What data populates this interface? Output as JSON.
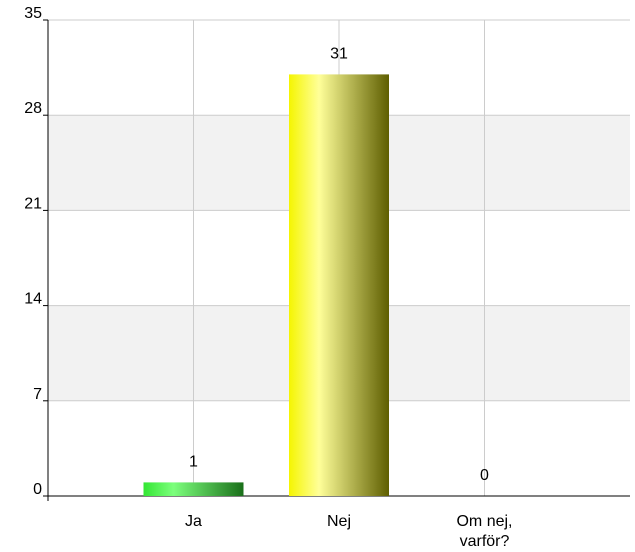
{
  "chart_data": {
    "type": "bar",
    "categories": [
      "Ja",
      "Nej",
      "Om nej, varför?"
    ],
    "category_label_lines": [
      [
        "Ja"
      ],
      [
        "Nej"
      ],
      [
        "Om nej,",
        "varför?"
      ]
    ],
    "values": [
      1,
      31,
      0
    ],
    "data_labels": [
      "1",
      "31",
      "0"
    ],
    "ylim": [
      0,
      35
    ],
    "yticks": [
      0,
      7,
      14,
      21,
      28,
      35
    ],
    "ytick_labels": [
      "0",
      "7",
      "14",
      "21",
      "28",
      "35"
    ],
    "grid": true,
    "banded_background": true,
    "legend": "none",
    "title": "",
    "xlabel": "",
    "ylabel": ""
  },
  "colors": {
    "background": "#ffffff",
    "band": "#f2f2f2",
    "grid": "#cccccc",
    "axis": "#000000",
    "bar_ja_light": "#7cff7c",
    "bar_ja_dark": "#1a7a1a",
    "bar_nej_light": "#ffff99",
    "bar_nej_dark": "#6b6b00"
  }
}
